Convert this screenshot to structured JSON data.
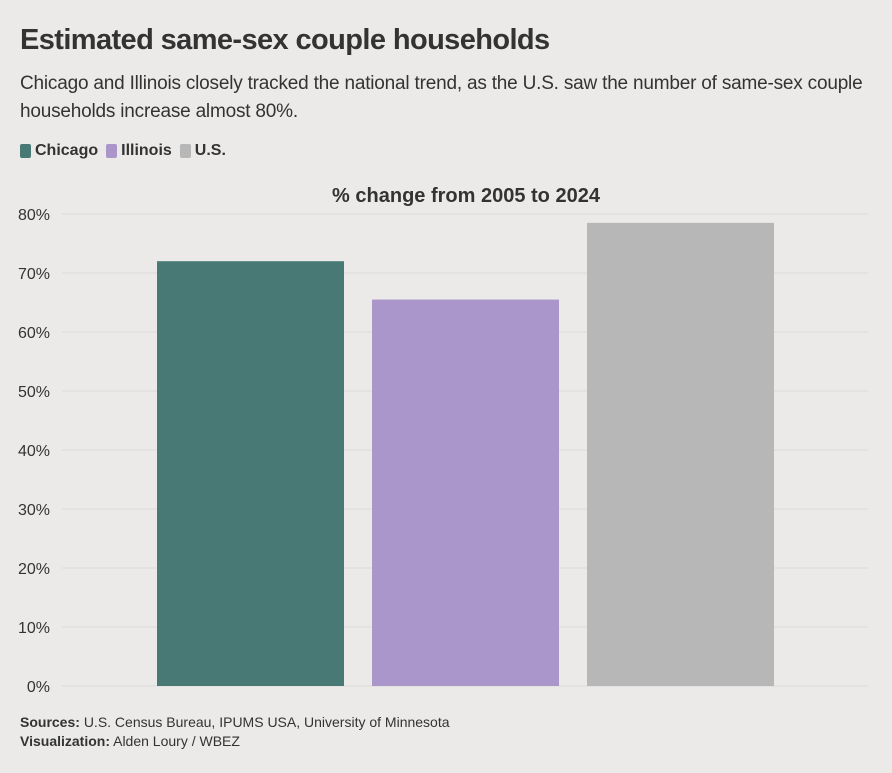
{
  "header": {
    "title": "Estimated same-sex couple households",
    "subtitle": "Chicago and Illinois closely tracked the national trend, as the U.S. saw the number of same-sex couple households increase almost 80%."
  },
  "legend": [
    {
      "label": "Chicago",
      "color": "#487975"
    },
    {
      "label": "Illinois",
      "color": "#ab96cb"
    },
    {
      "label": "U.S.",
      "color": "#b7b7b7"
    }
  ],
  "chart_data": {
    "type": "bar",
    "title": "% change from 2005 to 2024",
    "categories": [
      "Chicago",
      "Illinois",
      "U.S."
    ],
    "values": [
      72,
      65.5,
      78.5
    ],
    "colors": [
      "#487975",
      "#ab96cb",
      "#b7b7b7"
    ],
    "ylim": [
      0,
      80
    ],
    "yticks": [
      0,
      10,
      20,
      30,
      40,
      50,
      60,
      70,
      80
    ],
    "ytick_labels": [
      "0%",
      "10%",
      "20%",
      "30%",
      "40%",
      "50%",
      "60%",
      "70%",
      "80%"
    ],
    "xlabel": "",
    "ylabel": "",
    "grid": true
  },
  "footer": {
    "sources_label": "Sources:",
    "sources_text": "U.S. Census Bureau, IPUMS USA, University of Minnesota",
    "viz_label": "Visualization:",
    "viz_text": "Alden Loury / WBEZ"
  }
}
